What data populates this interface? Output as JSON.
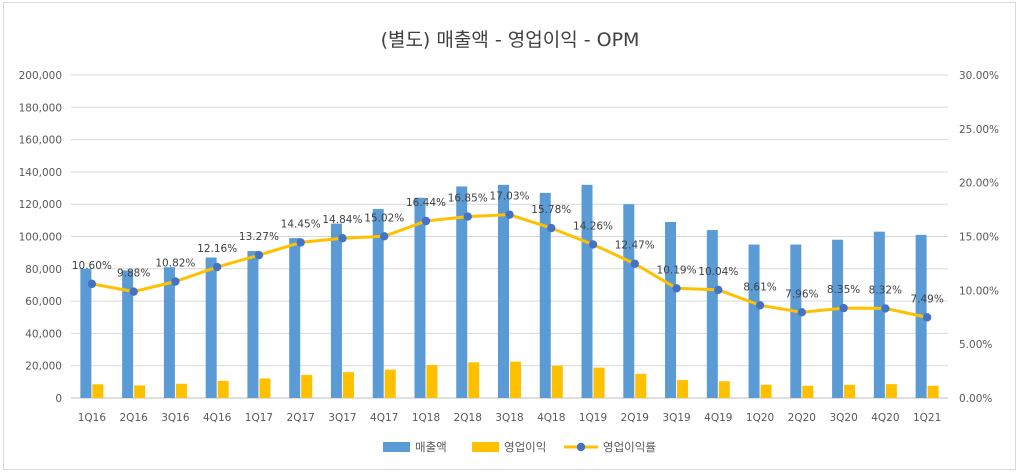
{
  "chart_data": {
    "type": "bar",
    "title": "(별도) 매출액 - 영업이익 - OPM",
    "categories": [
      "1Q16",
      "2Q16",
      "3Q16",
      "4Q16",
      "1Q17",
      "2Q17",
      "3Q17",
      "4Q17",
      "1Q18",
      "2Q18",
      "3Q18",
      "4Q18",
      "1Q19",
      "2Q19",
      "3Q19",
      "4Q19",
      "1Q20",
      "2Q20",
      "3Q20",
      "4Q20",
      "1Q21"
    ],
    "series": [
      {
        "name": "매출액",
        "type": "bar",
        "axis": "left",
        "color": "#5b9bd5",
        "values": [
          80000,
          79000,
          81000,
          87000,
          91000,
          99000,
          108000,
          117000,
          124000,
          131000,
          132000,
          127000,
          132000,
          120000,
          109000,
          104000,
          95000,
          95000,
          98000,
          103000,
          101000
        ]
      },
      {
        "name": "영업이익",
        "type": "bar",
        "axis": "left",
        "color": "#ffc000",
        "values": [
          8500,
          7800,
          8800,
          10600,
          12100,
          14300,
          16000,
          17600,
          20400,
          22100,
          22500,
          20000,
          18800,
          15000,
          11100,
          10400,
          8200,
          7600,
          8200,
          8600,
          7600
        ]
      },
      {
        "name": "영업이익률",
        "type": "line",
        "axis": "right",
        "color": "#ffc000",
        "marker_color": "#4472c4",
        "values": [
          10.6,
          9.88,
          10.82,
          12.16,
          13.27,
          14.45,
          14.84,
          15.02,
          16.44,
          16.85,
          17.03,
          15.78,
          14.26,
          12.47,
          10.19,
          10.04,
          8.61,
          7.96,
          8.35,
          8.32,
          7.49
        ],
        "labels": [
          "10.60%",
          "9.88%",
          "10.82%",
          "12.16%",
          "13.27%",
          "14.45%",
          "14.84%",
          "15.02%",
          "16.44%",
          "16.85%",
          "17.03%",
          "15.78%",
          "14.26%",
          "12.47%",
          "10.19%",
          "10.04%",
          "8.61%",
          "7.96%",
          "8.35%",
          "8.32%",
          "7.49%"
        ]
      }
    ],
    "y_left": {
      "min": 0,
      "max": 200000,
      "ticks": [
        "0",
        "20,000",
        "40,000",
        "60,000",
        "80,000",
        "100,000",
        "120,000",
        "140,000",
        "160,000",
        "180,000",
        "200,000"
      ]
    },
    "y_right": {
      "min": 0,
      "max": 30,
      "ticks": [
        "0.00%",
        "5.00%",
        "10.00%",
        "15.00%",
        "20.00%",
        "25.00%",
        "30.00%"
      ]
    },
    "grid": true,
    "legend_position": "bottom",
    "xlabel": "",
    "ylabel": ""
  }
}
